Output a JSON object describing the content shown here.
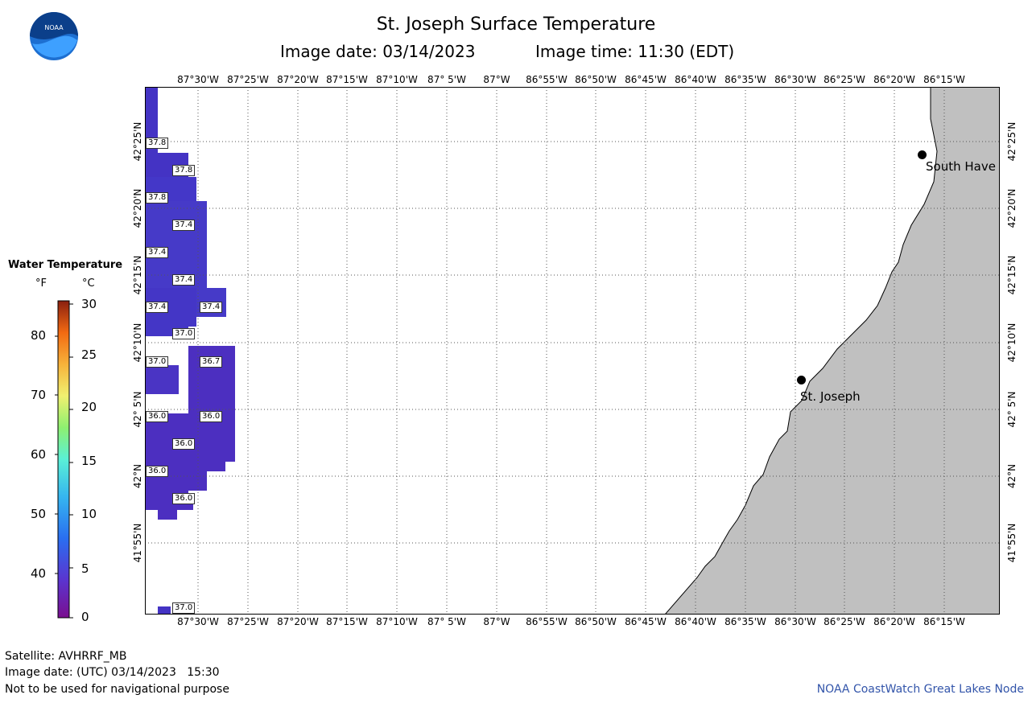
{
  "header": {
    "title": "St. Joseph Surface Temperature",
    "image_date_label": "Image date: 03/14/2023",
    "image_time_label": "Image time: 11:30 (EDT)"
  },
  "map": {
    "lon_labels": [
      "87°30'W",
      "87°25'W",
      "87°20'W",
      "87°15'W",
      "87°10'W",
      "87° 5'W",
      "87°W",
      "86°55'W",
      "86°50'W",
      "86°45'W",
      "86°40'W",
      "86°35'W",
      "86°30'W",
      "86°25'W",
      "86°20'W",
      "86°15'W"
    ],
    "lat_labels": [
      "42°25'N",
      "42°20'N",
      "42°15'N",
      "42°10'N",
      "42° 5'N",
      "42°N",
      "41°55'N"
    ],
    "cities": [
      {
        "name": "South Have"
      },
      {
        "name": "St. Joseph"
      }
    ],
    "temperature_labels": [
      "37.8",
      "37.8",
      "37.8",
      "37.4",
      "37.4",
      "37.4",
      "37.4",
      "37.4",
      "37.0",
      "37.0",
      "36.7",
      "36.0",
      "36.0",
      "36.0",
      "36.0",
      "36.0",
      "37.0"
    ],
    "colors": {
      "water_cold": "#4a39c8",
      "water_colder": "#5a2fc0",
      "land": "#c0c0c0",
      "frame": "#000000"
    }
  },
  "legend": {
    "title": "Water Temperature",
    "unit_f": "°F",
    "unit_c": "°C",
    "f_ticks": [
      "80",
      "70",
      "60",
      "50",
      "40"
    ],
    "c_ticks": [
      "30",
      "25",
      "20",
      "15",
      "10",
      "5",
      "0"
    ]
  },
  "footer": {
    "satellite": "Satellite: AVHRRF_MB",
    "utc_date": "Image date: (UTC) 03/14/2023   15:30",
    "disclaimer": "Not to be used for navigational purpose",
    "credit": "NOAA CoastWatch Great Lakes Node"
  }
}
